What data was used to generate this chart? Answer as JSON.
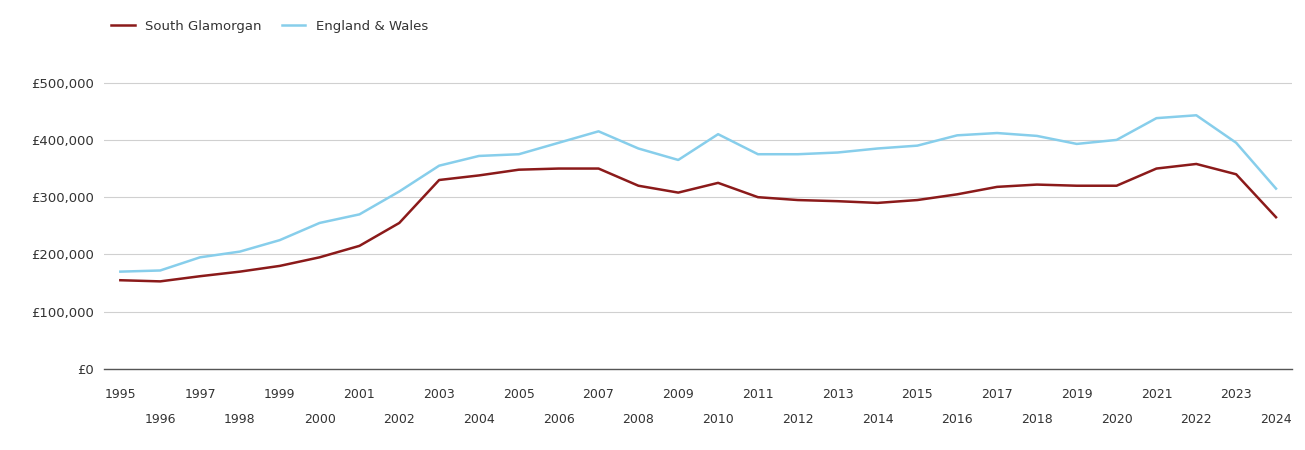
{
  "years": [
    1995,
    1996,
    1997,
    1998,
    1999,
    2000,
    2001,
    2002,
    2003,
    2004,
    2005,
    2006,
    2007,
    2008,
    2009,
    2010,
    2011,
    2012,
    2013,
    2014,
    2015,
    2016,
    2017,
    2018,
    2019,
    2020,
    2021,
    2022,
    2023,
    2024
  ],
  "south_glamorgan": [
    155000,
    153000,
    162000,
    170000,
    180000,
    195000,
    215000,
    255000,
    330000,
    338000,
    348000,
    350000,
    350000,
    320000,
    308000,
    325000,
    300000,
    295000,
    293000,
    290000,
    295000,
    305000,
    318000,
    322000,
    320000,
    320000,
    350000,
    358000,
    340000,
    265000
  ],
  "england_wales": [
    170000,
    172000,
    195000,
    205000,
    225000,
    255000,
    270000,
    310000,
    355000,
    372000,
    375000,
    395000,
    415000,
    385000,
    365000,
    410000,
    375000,
    375000,
    378000,
    385000,
    390000,
    408000,
    412000,
    407000,
    393000,
    400000,
    438000,
    443000,
    395000,
    315000
  ],
  "south_glamorgan_color": "#8B1A1A",
  "england_wales_color": "#87CEEB",
  "background_color": "#ffffff",
  "grid_color": "#d0d0d0",
  "ylim": [
    0,
    550000
  ],
  "yticks": [
    0,
    100000,
    200000,
    300000,
    400000,
    500000
  ],
  "ytick_labels": [
    "£0",
    "£100,000",
    "£200,000",
    "£300,000",
    "£400,000",
    "£500,000"
  ],
  "legend_south": "South Glamorgan",
  "legend_ew": "England & Wales",
  "line_width": 1.8,
  "xlim_left": 1994.6,
  "xlim_right": 2024.4
}
